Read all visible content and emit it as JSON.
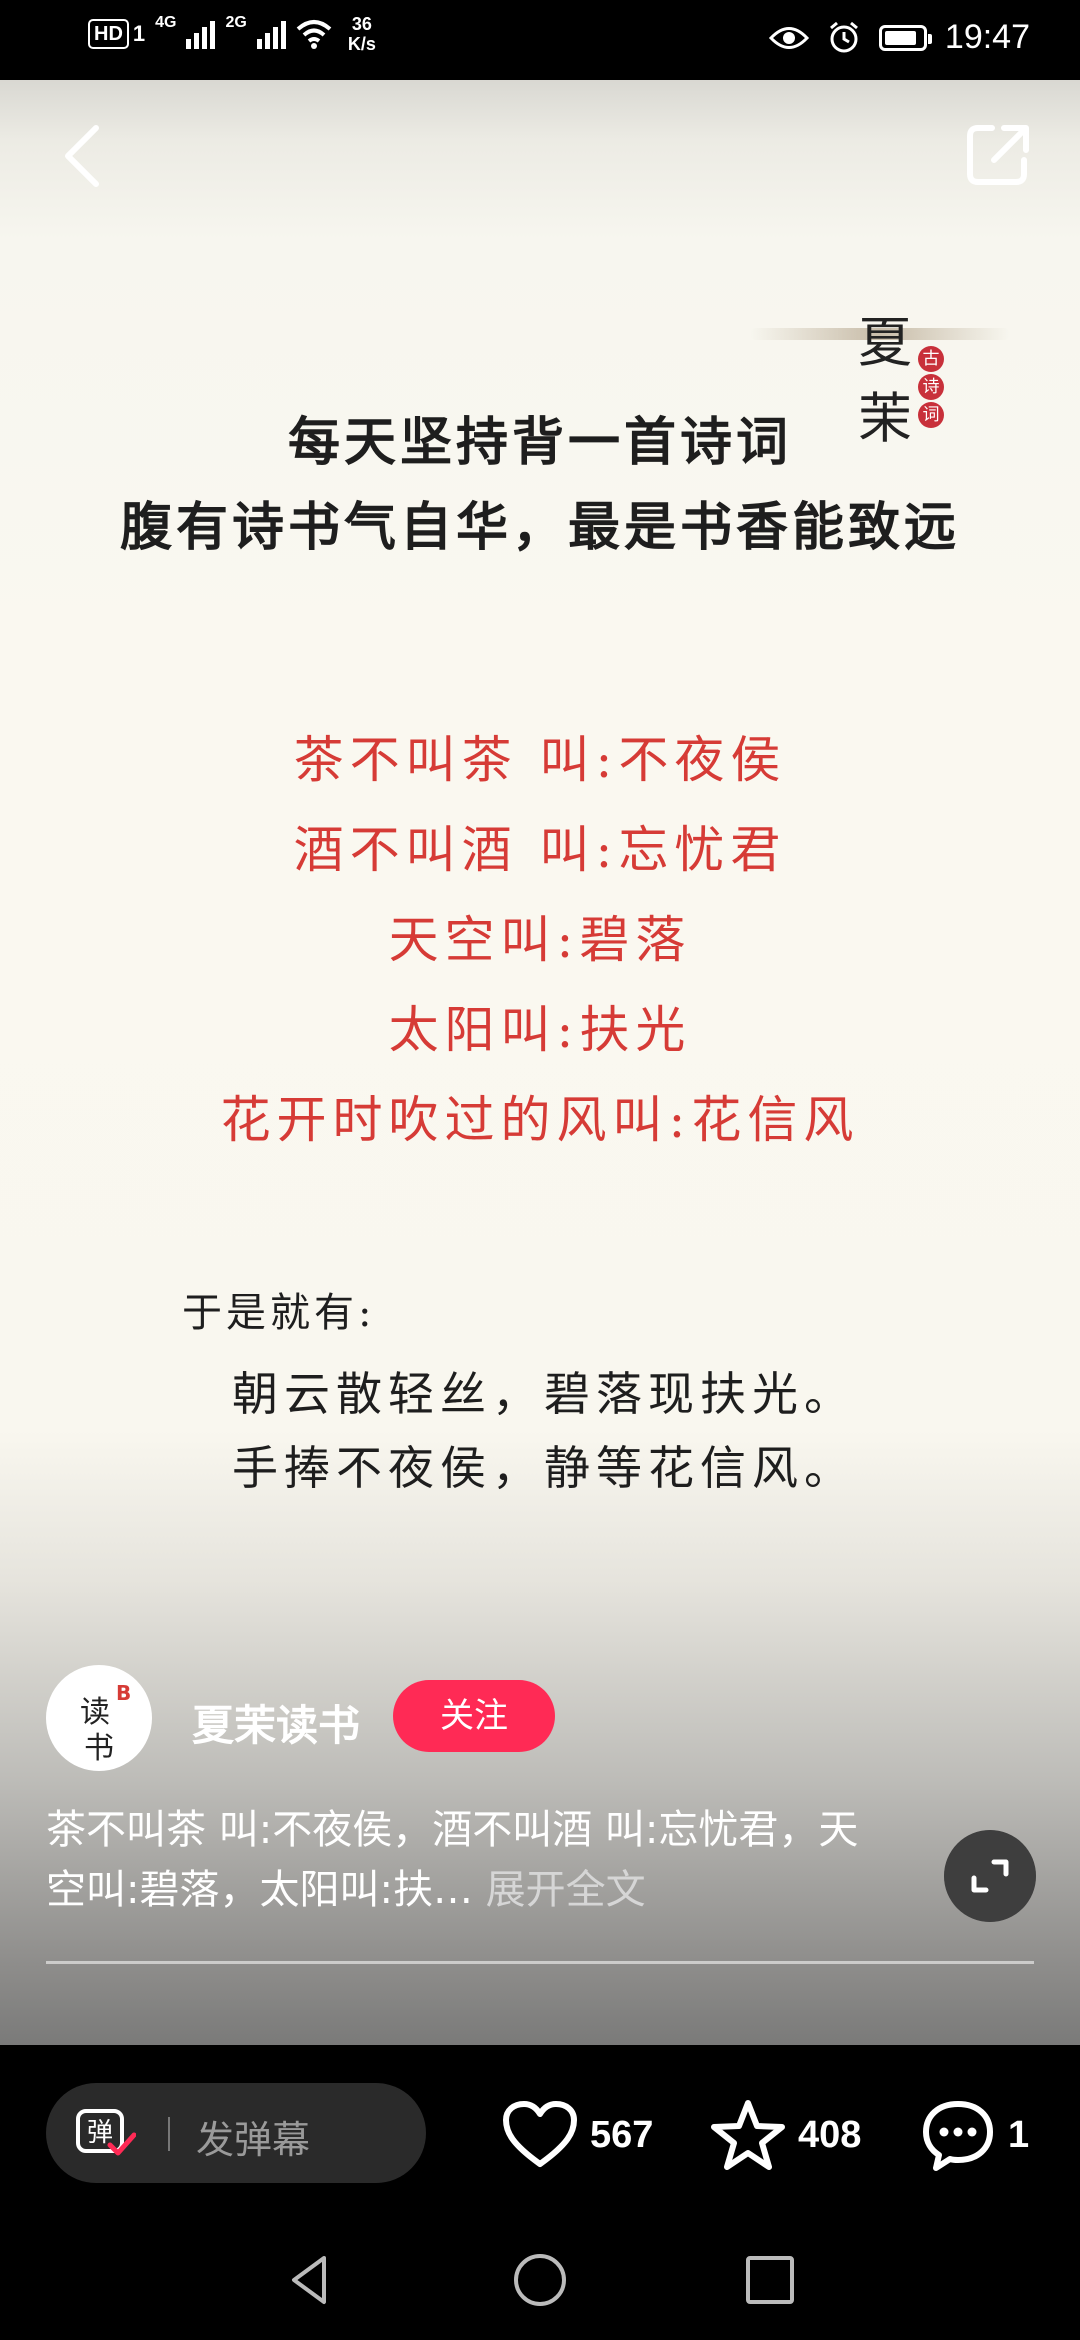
{
  "status_bar": {
    "hd": "HD",
    "sim1": "1",
    "net1": "4G",
    "net2": "2G",
    "speed_value": "36",
    "speed_unit": "K/s",
    "time": "19:47",
    "battery_level": 0.85
  },
  "header": {
    "back_icon": "chevron-left-icon",
    "share_icon": "share-external-icon"
  },
  "image": {
    "seal_char_1": "夏",
    "seal_char_2": "茉",
    "seal_stamps": [
      "古",
      "诗",
      "词"
    ],
    "intro_line_1": "每天坚持背一首诗词",
    "intro_line_2": "腹有诗书气自华，最是书香能致远",
    "red_lines": [
      "茶不叫茶  叫:不夜侯",
      "酒不叫酒  叫:忘忧君",
      "天空叫:碧落",
      "太阳叫:扶光",
      "花开时吹过的风叫:花信风"
    ],
    "poem_head": "于是就有:",
    "poem_lines": [
      "朝云散轻丝，碧落现扶光。",
      "手捧不夜侯，静等花信风。"
    ]
  },
  "author": {
    "avatar_text_1": "读",
    "avatar_text_2": "书",
    "avatar_badge": "B",
    "name": "夏茉读书",
    "follow_label": "关注"
  },
  "description": {
    "text": "茶不叫茶 叫:不夜侯，酒不叫酒 叫:忘忧君，天空叫:碧落，太阳叫:扶…",
    "expand_label": "展开全文"
  },
  "bottom_bar": {
    "danmu_icon_text": "弹",
    "danmu_placeholder": "发弹幕",
    "likes": "567",
    "favorites": "408",
    "comments": "1"
  },
  "colors": {
    "accent": "#ff2a55",
    "poem_red": "#d63b36"
  }
}
